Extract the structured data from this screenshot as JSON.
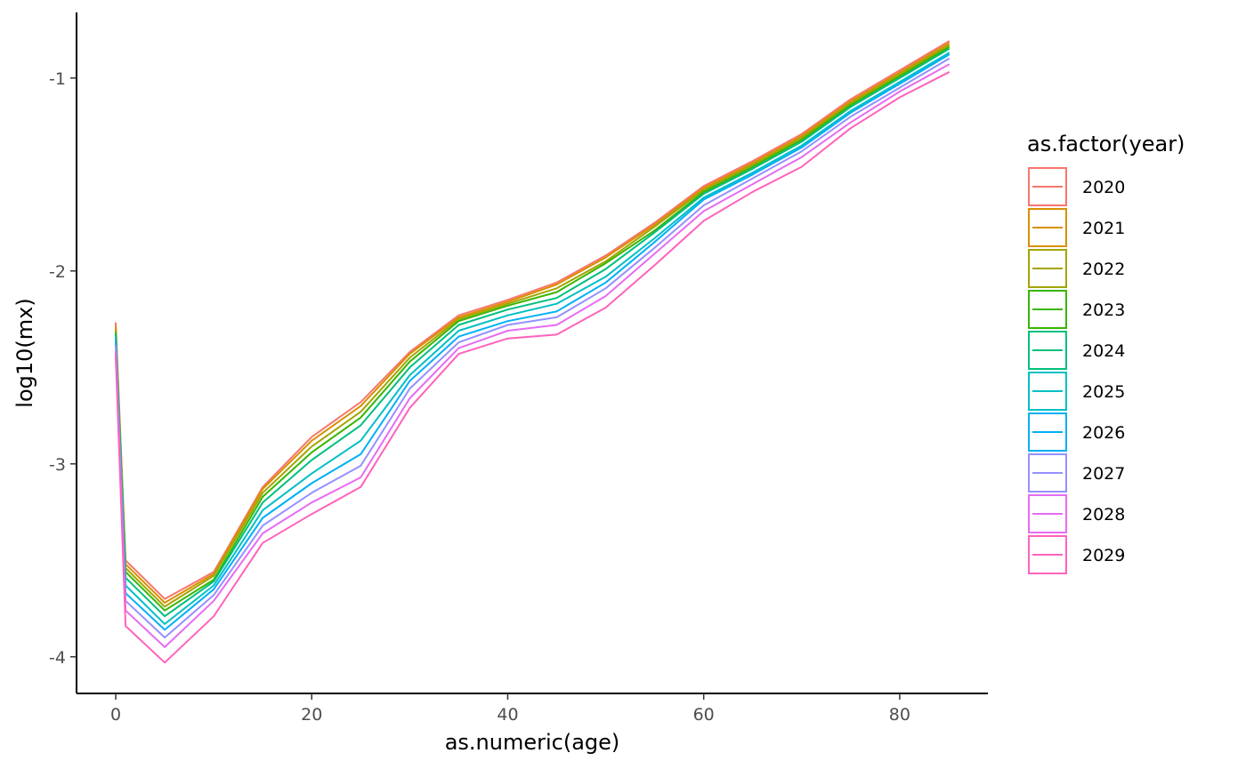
{
  "chart_data": {
    "type": "line",
    "xlabel": "as.numeric(age)",
    "ylabel": "log10(mx)",
    "xlim": [
      -4,
      89
    ],
    "ylim": [
      -4.19,
      -0.66
    ],
    "x_ticks": [
      0,
      20,
      40,
      60,
      80
    ],
    "y_ticks": [
      -4,
      -3,
      -2,
      -1
    ],
    "x_tick_labels": [
      "0",
      "20",
      "40",
      "60",
      "80"
    ],
    "y_tick_labels": [
      "-4",
      "-3",
      "-2",
      "-1"
    ],
    "grid": false,
    "legend": {
      "title": "as.factor(year)",
      "position": "right"
    },
    "x": [
      0,
      1,
      5,
      10,
      15,
      20,
      25,
      30,
      35,
      40,
      45,
      50,
      55,
      60,
      65,
      70,
      75,
      80,
      85
    ],
    "series": [
      {
        "name": "2020",
        "color": "#F8766D",
        "values": [
          -2.27,
          -3.5,
          -3.7,
          -3.56,
          -3.12,
          -2.86,
          -2.68,
          -2.42,
          -2.23,
          -2.15,
          -2.06,
          -1.92,
          -1.75,
          -1.56,
          -1.43,
          -1.29,
          -1.11,
          -0.96,
          -0.81
        ]
      },
      {
        "name": "2021",
        "color": "#D89000",
        "values": [
          -2.29,
          -3.52,
          -3.72,
          -3.57,
          -3.13,
          -2.88,
          -2.7,
          -2.43,
          -2.24,
          -2.16,
          -2.07,
          -1.93,
          -1.76,
          -1.57,
          -1.44,
          -1.3,
          -1.12,
          -0.97,
          -0.82
        ]
      },
      {
        "name": "2022",
        "color": "#A3A500",
        "values": [
          -2.31,
          -3.54,
          -3.74,
          -3.58,
          -3.15,
          -2.91,
          -2.73,
          -2.45,
          -2.25,
          -2.17,
          -2.09,
          -1.95,
          -1.77,
          -1.58,
          -1.45,
          -1.31,
          -1.13,
          -0.98,
          -0.83
        ]
      },
      {
        "name": "2023",
        "color": "#39B600",
        "values": [
          -2.32,
          -3.56,
          -3.76,
          -3.6,
          -3.17,
          -2.94,
          -2.76,
          -2.47,
          -2.26,
          -2.18,
          -2.11,
          -1.96,
          -1.79,
          -1.59,
          -1.46,
          -1.32,
          -1.14,
          -0.99,
          -0.84
        ]
      },
      {
        "name": "2024",
        "color": "#00BF7D",
        "values": [
          -2.33,
          -3.59,
          -3.79,
          -3.61,
          -3.2,
          -2.98,
          -2.8,
          -2.5,
          -2.28,
          -2.2,
          -2.14,
          -1.99,
          -1.8,
          -1.6,
          -1.47,
          -1.33,
          -1.15,
          -1.0,
          -0.85
        ]
      },
      {
        "name": "2025",
        "color": "#00BFC4",
        "values": [
          -2.35,
          -3.63,
          -3.83,
          -3.63,
          -3.24,
          -3.05,
          -2.88,
          -2.54,
          -2.31,
          -2.23,
          -2.17,
          -2.03,
          -1.83,
          -1.62,
          -1.49,
          -1.35,
          -1.17,
          -1.02,
          -0.87
        ]
      },
      {
        "name": "2026",
        "color": "#00B0F6",
        "values": [
          -2.37,
          -3.67,
          -3.86,
          -3.65,
          -3.28,
          -3.1,
          -2.95,
          -2.57,
          -2.34,
          -2.26,
          -2.21,
          -2.06,
          -1.85,
          -1.63,
          -1.5,
          -1.36,
          -1.18,
          -1.03,
          -0.88
        ]
      },
      {
        "name": "2027",
        "color": "#9590FF",
        "values": [
          -2.39,
          -3.71,
          -3.9,
          -3.68,
          -3.32,
          -3.15,
          -3.01,
          -2.61,
          -2.37,
          -2.28,
          -2.24,
          -2.09,
          -1.88,
          -1.66,
          -1.52,
          -1.38,
          -1.2,
          -1.05,
          -0.9
        ]
      },
      {
        "name": "2028",
        "color": "#E76BF3",
        "values": [
          -2.42,
          -3.76,
          -3.95,
          -3.71,
          -3.36,
          -3.2,
          -3.07,
          -2.66,
          -2.4,
          -2.31,
          -2.28,
          -2.13,
          -1.91,
          -1.69,
          -1.55,
          -1.41,
          -1.23,
          -1.07,
          -0.93
        ]
      },
      {
        "name": "2029",
        "color": "#FF62BC",
        "values": [
          -2.44,
          -3.84,
          -4.03,
          -3.79,
          -3.41,
          -3.26,
          -3.12,
          -2.71,
          -2.43,
          -2.35,
          -2.33,
          -2.19,
          -1.97,
          -1.74,
          -1.59,
          -1.46,
          -1.26,
          -1.1,
          -0.97
        ]
      }
    ]
  }
}
